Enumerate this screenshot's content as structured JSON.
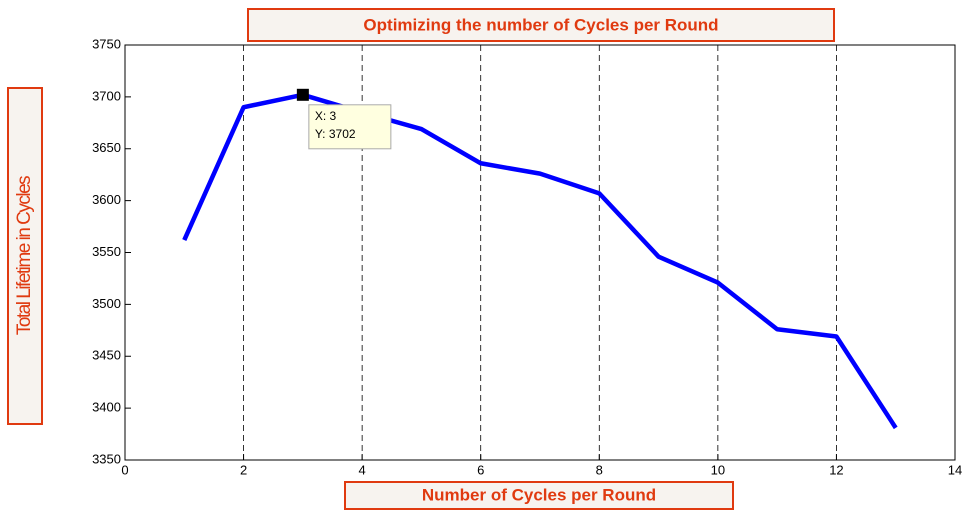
{
  "chart_data": {
    "type": "line",
    "title": "Optimizing the number of Cycles per Round",
    "x_label": "Number of Cycles per Round",
    "y_label": "Total Lifetime in Cycles",
    "x": [
      1,
      2,
      3,
      4,
      5,
      6,
      7,
      8,
      9,
      10,
      11,
      12,
      13
    ],
    "series": [
      {
        "name": "Total Lifetime",
        "color": "#0000ff",
        "values": [
          3562,
          3690,
          3702,
          3685,
          3669,
          3636,
          3626,
          3607,
          3546,
          3521,
          3476,
          3469,
          3381
        ]
      }
    ],
    "xlim": [
      0,
      14
    ],
    "xticks": [
      0,
      2,
      4,
      6,
      8,
      10,
      12,
      14
    ],
    "ylim": [
      3350,
      3750
    ],
    "yticks": [
      3350,
      3400,
      3450,
      3500,
      3550,
      3600,
      3650,
      3700,
      3750
    ],
    "grid": "x",
    "annotation": {
      "point": 2,
      "lines": [
        "X: 3",
        "Y: 3702"
      ]
    }
  }
}
